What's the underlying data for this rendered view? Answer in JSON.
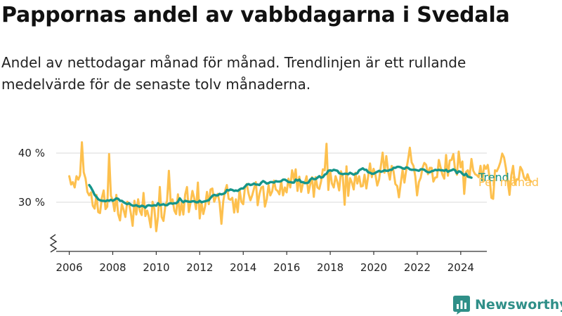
{
  "header": {
    "title": "Pappornas andel av vabbdagarna i Svedala",
    "subtitle": "Andel av nettodagar månad för månad. Trendlinjen är ett rullande medelvärde för de senaste tolv månaderna."
  },
  "brand": {
    "name": "Newsworthy",
    "color": "#2f8f88"
  },
  "chart_data": {
    "type": "line",
    "xlim": [
      2005.4,
      2025.2
    ],
    "ylim": [
      20,
      44
    ],
    "yticks": [
      30,
      40
    ],
    "ytick_labels": [
      "30 %",
      "40 %"
    ],
    "xticks": [
      2006,
      2008,
      2010,
      2012,
      2014,
      2016,
      2018,
      2020,
      2022,
      2024
    ],
    "xtick_labels": [
      "2006",
      "2008",
      "2010",
      "2012",
      "2014",
      "2016",
      "2018",
      "2020",
      "2022",
      "2024"
    ],
    "axis_break": true,
    "grid": "horizontal",
    "legend": "end-of-line labels, right",
    "series": [
      {
        "name": "Per månad",
        "color": "#fdc04e",
        "x_start": 2006.0,
        "x_step": 0.0833,
        "values": [
          35.3,
          33.6,
          34.1,
          33.0,
          35.3,
          34.6,
          35.5,
          42.2,
          36.1,
          34.8,
          32.1,
          31.4,
          32.0,
          29.3,
          28.7,
          31.5,
          28.0,
          27.8,
          30.9,
          32.4,
          28.6,
          29.1,
          39.8,
          31.3,
          30.4,
          28.2,
          31.5,
          27.6,
          26.3,
          29.6,
          28.5,
          27.0,
          30.1,
          29.8,
          27.7,
          25.2,
          30.3,
          27.5,
          30.6,
          28.2,
          27.4,
          31.9,
          27.2,
          28.3,
          27.0,
          24.9,
          30.1,
          28.6,
          24.1,
          27.0,
          33.1,
          27.0,
          26.2,
          29.2,
          30.3,
          36.4,
          29.8,
          30.6,
          28.3,
          27.6,
          31.6,
          27.4,
          29.9,
          27.5,
          31.6,
          33.1,
          28.0,
          30.0,
          32.3,
          30.8,
          28.6,
          34.0,
          26.7,
          29.9,
          27.6,
          29.2,
          32.1,
          29.6,
          32.6,
          32.8,
          30.1,
          31.1,
          31.7,
          29.9,
          25.6,
          30.2,
          32.3,
          33.5,
          30.7,
          30.5,
          30.9,
          27.9,
          30.6,
          28.0,
          32.6,
          30.1,
          29.6,
          33.0,
          33.7,
          31.7,
          30.4,
          31.4,
          32.8,
          34.1,
          29.4,
          31.7,
          33.0,
          33.2,
          29.1,
          30.6,
          33.5,
          31.4,
          32.2,
          34.4,
          32.6,
          32.3,
          31.6,
          34.3,
          31.4,
          33.0,
          32.0,
          34.8,
          33.0,
          36.5,
          34.6,
          36.7,
          32.3,
          35.2,
          32.1,
          33.9,
          33.9,
          35.3,
          31.9,
          33.6,
          35.1,
          31.1,
          35.1,
          33.0,
          32.7,
          34.2,
          36.7,
          36.5,
          41.9,
          32.5,
          36.5,
          33.8,
          33.0,
          35.3,
          34.1,
          32.4,
          36.3,
          35.1,
          29.5,
          37.3,
          31.3,
          34.9,
          34.0,
          32.6,
          36.0,
          33.8,
          35.3,
          33.2,
          33.3,
          35.6,
          32.8,
          35.3,
          37.9,
          35.1,
          36.8,
          35.6,
          33.4,
          34.6,
          37.4,
          40.1,
          36.0,
          39.4,
          36.3,
          34.6,
          37.4,
          36.3,
          33.7,
          33.3,
          31.0,
          33.9,
          36.6,
          34.0,
          36.6,
          38.6,
          41.1,
          38.1,
          37.4,
          35.2,
          31.4,
          34.1,
          35.0,
          37.0,
          38.0,
          37.6,
          35.7,
          37.0,
          37.0,
          34.2,
          35.0,
          35.1,
          38.6,
          37.0,
          35.6,
          34.8,
          39.6,
          35.4,
          38.5,
          38.6,
          39.8,
          36.5,
          35.6,
          40.3,
          37.1,
          38.3,
          31.7,
          36.2,
          36.5,
          35.3,
          38.8,
          36.4,
          35.7,
          35.5,
          35.1,
          37.4,
          34.4,
          37.5,
          36.8,
          37.6,
          35.0,
          30.9,
          30.7,
          36.5,
          36.3,
          37.1,
          38.2,
          39.9,
          39.1,
          37.0,
          34.2,
          31.5,
          35.4,
          37.4,
          33.7,
          34.7,
          34.6,
          37.2,
          36.5,
          35.0,
          34.5,
          35.7,
          34.5,
          34.2
        ]
      },
      {
        "name": "Trend",
        "color": "#15958a",
        "x_start": 2006.917,
        "x_step": 0.0833,
        "values": [
          33.5,
          33.0,
          32.3,
          31.5,
          31.1,
          30.6,
          30.4,
          30.3,
          30.3,
          30.2,
          30.4,
          30.3,
          30.5,
          30.3,
          30.5,
          30.8,
          30.7,
          30.3,
          30.3,
          30.0,
          29.8,
          29.6,
          29.8,
          29.5,
          29.3,
          29.3,
          29.4,
          29.2,
          29.1,
          29.3,
          29.2,
          28.9,
          29.3,
          29.4,
          29.3,
          29.3,
          29.4,
          29.3,
          29.8,
          29.4,
          29.5,
          29.6,
          29.4,
          29.4,
          29.7,
          29.8,
          29.7,
          29.8,
          29.8,
          30.1,
          30.8,
          30.3,
          30.0,
          30.3,
          30.2,
          30.1,
          30.1,
          30.2,
          30.2,
          30.0,
          30.0,
          30.3,
          30.0,
          30.1,
          30.2,
          30.3,
          30.4,
          30.9,
          31.3,
          31.5,
          31.4,
          31.4,
          31.7,
          31.6,
          31.7,
          31.9,
          32.5,
          32.4,
          32.6,
          32.5,
          32.3,
          32.4,
          32.3,
          32.6,
          32.8,
          32.8,
          33.2,
          33.6,
          33.7,
          33.5,
          33.6,
          33.8,
          33.6,
          33.6,
          33.5,
          34.0,
          34.3,
          34.1,
          33.8,
          33.9,
          34.1,
          34.1,
          34.0,
          34.3,
          34.2,
          34.2,
          34.3,
          34.6,
          34.6,
          34.4,
          34.1,
          34.1,
          34.0,
          34.0,
          34.6,
          34.4,
          34.6,
          34.1,
          34.1,
          33.9,
          33.9,
          34.0,
          34.6,
          34.9,
          34.7,
          34.7,
          35.0,
          35.3,
          35.0,
          35.1,
          35.6,
          35.8,
          36.4,
          36.5,
          36.4,
          36.6,
          36.5,
          36.4,
          35.9,
          35.8,
          35.7,
          35.8,
          35.8,
          35.7,
          36.0,
          35.8,
          35.6,
          35.8,
          35.9,
          36.5,
          36.7,
          36.9,
          36.6,
          36.6,
          36.1,
          36.0,
          35.8,
          35.8,
          36.0,
          36.2,
          36.4,
          36.2,
          36.3,
          36.5,
          36.4,
          36.4,
          36.6,
          36.6,
          37.0,
          37.0,
          37.2,
          37.2,
          37.1,
          36.9,
          36.8,
          37.1,
          37.0,
          36.7,
          36.6,
          36.6,
          36.6,
          36.5,
          36.4,
          36.7,
          36.7,
          36.6,
          36.3,
          36.1,
          36.1,
          36.3,
          36.4,
          36.6,
          36.5,
          36.6,
          36.5,
          36.5,
          36.4,
          36.6,
          36.2,
          36.4,
          36.5,
          36.7,
          36.5,
          35.9,
          36.3,
          36.2,
          35.8,
          35.5,
          35.8,
          35.2,
          35.1,
          35.0
        ]
      }
    ]
  }
}
